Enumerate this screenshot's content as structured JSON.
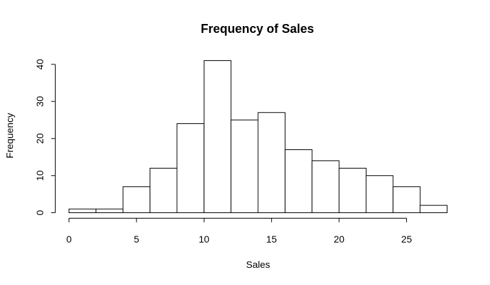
{
  "chart_data": {
    "type": "bar",
    "subtype": "histogram",
    "title": "Frequency of Sales",
    "xlabel": "Sales",
    "ylabel": "Frequency",
    "bin_edges": [
      0,
      2,
      4,
      6,
      8,
      10,
      12,
      14,
      16,
      18,
      20,
      22,
      24,
      26,
      28
    ],
    "values": [
      1,
      1,
      7,
      12,
      24,
      41,
      25,
      27,
      17,
      14,
      12,
      10,
      7,
      2
    ],
    "x_ticks": [
      0,
      5,
      10,
      15,
      20,
      25
    ],
    "x_tick_labels": [
      "0",
      "5",
      "10",
      "15",
      "20",
      "25"
    ],
    "y_ticks": [
      0,
      10,
      20,
      30,
      40
    ],
    "y_tick_labels": [
      "0",
      "10",
      "20",
      "30",
      "40"
    ],
    "xlim": [
      0,
      28
    ],
    "ylim": [
      0,
      41
    ],
    "grid": false,
    "legend": "none",
    "bar_fill": "#ffffff",
    "bar_stroke": "#000000"
  }
}
